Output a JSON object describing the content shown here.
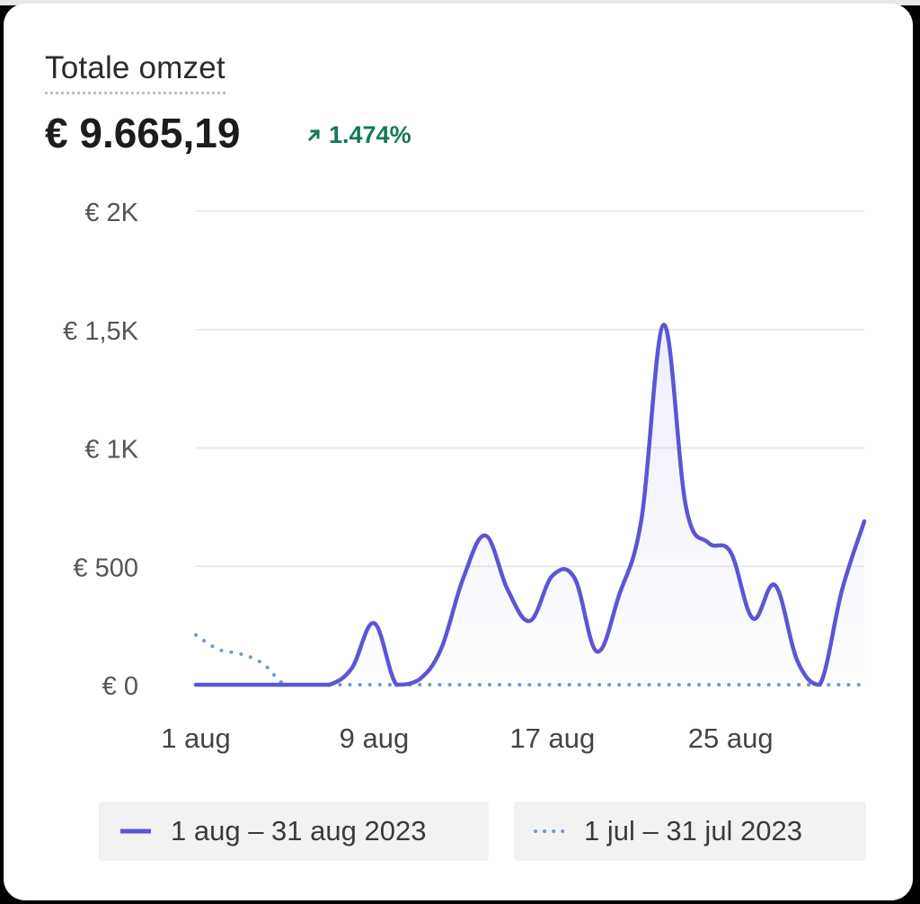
{
  "metric": {
    "title": "Totale omzet",
    "value": "€ 9.665,19",
    "change": "1.474%",
    "change_direction": "up",
    "change_color": "#137a53"
  },
  "legend": {
    "current_label": "1 aug – 31 aug 2023",
    "previous_label": "1 jul – 31 jul 2023"
  },
  "colors": {
    "current_line": "#5b55d6",
    "previous_line": "#6f9ac9",
    "grid": "#e6e6e6"
  },
  "chart_data": {
    "type": "line",
    "x": [
      1,
      2,
      3,
      4,
      5,
      6,
      7,
      8,
      9,
      10,
      11,
      12,
      13,
      14,
      15,
      16,
      17,
      18,
      19,
      20,
      21,
      22,
      23,
      24,
      25,
      26,
      27,
      28,
      29,
      30,
      31
    ],
    "xticks": [
      1,
      9,
      17,
      25
    ],
    "xtick_labels": [
      "1 aug",
      "9 aug",
      "17 aug",
      "25 aug"
    ],
    "yticks": [
      0,
      500,
      1000,
      1500,
      2000
    ],
    "ytick_labels": [
      "€ 0",
      "€ 500",
      "€ 1K",
      "€ 1,5K",
      "€ 2K"
    ],
    "ylim": [
      0,
      2000
    ],
    "grid": true,
    "series": [
      {
        "name": "1 aug – 31 aug 2023",
        "style": "solid",
        "values": [
          0,
          0,
          0,
          0,
          0,
          0,
          0,
          70,
          260,
          0,
          20,
          150,
          450,
          630,
          400,
          270,
          460,
          450,
          140,
          380,
          700,
          1520,
          750,
          600,
          560,
          280,
          420,
          100,
          0,
          400,
          690
        ]
      },
      {
        "name": "1 jul – 31 jul 2023",
        "style": "dotted",
        "values": [
          210,
          150,
          130,
          90,
          0,
          0,
          0,
          0,
          0,
          0,
          0,
          0,
          0,
          0,
          0,
          0,
          0,
          0,
          0,
          0,
          0,
          0,
          0,
          0,
          0,
          0,
          0,
          0,
          0,
          0,
          0
        ]
      }
    ]
  }
}
